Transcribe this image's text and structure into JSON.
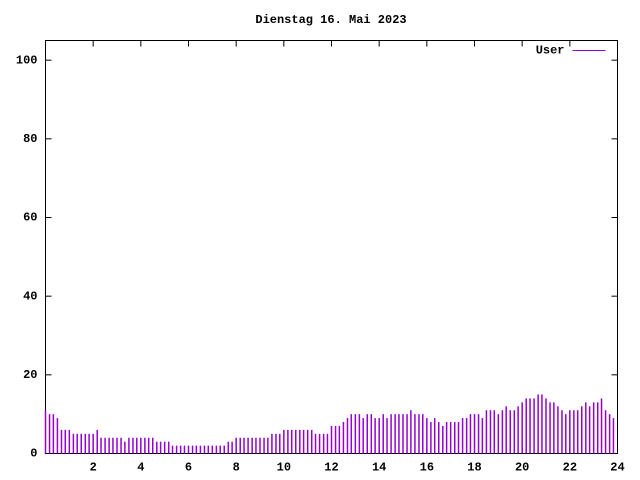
{
  "chart_data": {
    "type": "impulses",
    "title": "Dienstag 16. Mai 2023",
    "xlim": [
      0,
      24
    ],
    "xticks": [
      2,
      4,
      6,
      8,
      10,
      12,
      14,
      16,
      18,
      20,
      22,
      24
    ],
    "ylim": [
      0,
      105
    ],
    "yticks": [
      0,
      20,
      40,
      60,
      80,
      100
    ],
    "legend": "top-right",
    "x": [
      0,
      0.17,
      0.33,
      0.5,
      0.67,
      0.83,
      1,
      1.17,
      1.33,
      1.5,
      1.67,
      1.83,
      2,
      2.17,
      2.33,
      2.5,
      2.67,
      2.83,
      3,
      3.17,
      3.33,
      3.5,
      3.67,
      3.83,
      4,
      4.17,
      4.33,
      4.5,
      4.67,
      4.83,
      5,
      5.17,
      5.33,
      5.5,
      5.67,
      5.83,
      6,
      6.17,
      6.33,
      6.5,
      6.67,
      6.83,
      7,
      7.17,
      7.33,
      7.5,
      7.67,
      7.83,
      8,
      8.17,
      8.33,
      8.5,
      8.67,
      8.83,
      9,
      9.17,
      9.33,
      9.5,
      9.67,
      9.83,
      10,
      10.17,
      10.33,
      10.5,
      10.67,
      10.83,
      11,
      11.17,
      11.33,
      11.5,
      11.67,
      11.83,
      12,
      12.17,
      12.33,
      12.5,
      12.67,
      12.83,
      13,
      13.17,
      13.33,
      13.5,
      13.67,
      13.83,
      14,
      14.17,
      14.33,
      14.5,
      14.67,
      14.83,
      15,
      15.17,
      15.33,
      15.5,
      15.67,
      15.83,
      16,
      16.17,
      16.33,
      16.5,
      16.67,
      16.83,
      17,
      17.17,
      17.33,
      17.5,
      17.67,
      17.83,
      18,
      18.17,
      18.33,
      18.5,
      18.67,
      18.83,
      19,
      19.17,
      19.33,
      19.5,
      19.67,
      19.83,
      20,
      20.17,
      20.33,
      20.5,
      20.67,
      20.83,
      21,
      21.17,
      21.33,
      21.5,
      21.67,
      21.83,
      22,
      22.17,
      22.33,
      22.5,
      22.67,
      22.83,
      23,
      23.17,
      23.33,
      23.5,
      23.67,
      23.83
    ],
    "series": [
      {
        "name": "User",
        "color": "#9400d3",
        "values": [
          11,
          10,
          10,
          9,
          6,
          6,
          6,
          5,
          5,
          5,
          5,
          5,
          5,
          6,
          4,
          4,
          4,
          4,
          4,
          4,
          3,
          4,
          4,
          4,
          4,
          4,
          4,
          4,
          3,
          3,
          3,
          3,
          2,
          2,
          2,
          2,
          2,
          2,
          2,
          2,
          2,
          2,
          2,
          2,
          2,
          2,
          3,
          3,
          4,
          4,
          4,
          4,
          4,
          4,
          4,
          4,
          4,
          5,
          5,
          5,
          6,
          6,
          6,
          6,
          6,
          6,
          6,
          6,
          5,
          5,
          5,
          5,
          7,
          7,
          7,
          8,
          9,
          10,
          10,
          10,
          9,
          10,
          10,
          9,
          9,
          10,
          9,
          10,
          10,
          10,
          10,
          10,
          11,
          10,
          10,
          10,
          9,
          8,
          9,
          8,
          7,
          8,
          8,
          8,
          8,
          9,
          9,
          10,
          10,
          10,
          9,
          11,
          11,
          11,
          10,
          11,
          12,
          11,
          11,
          12,
          13,
          14,
          14,
          14,
          15,
          15,
          14,
          13,
          13,
          12,
          11,
          10,
          11,
          11,
          11,
          12,
          13,
          12,
          13,
          13,
          14,
          11,
          10,
          9
        ]
      }
    ]
  }
}
